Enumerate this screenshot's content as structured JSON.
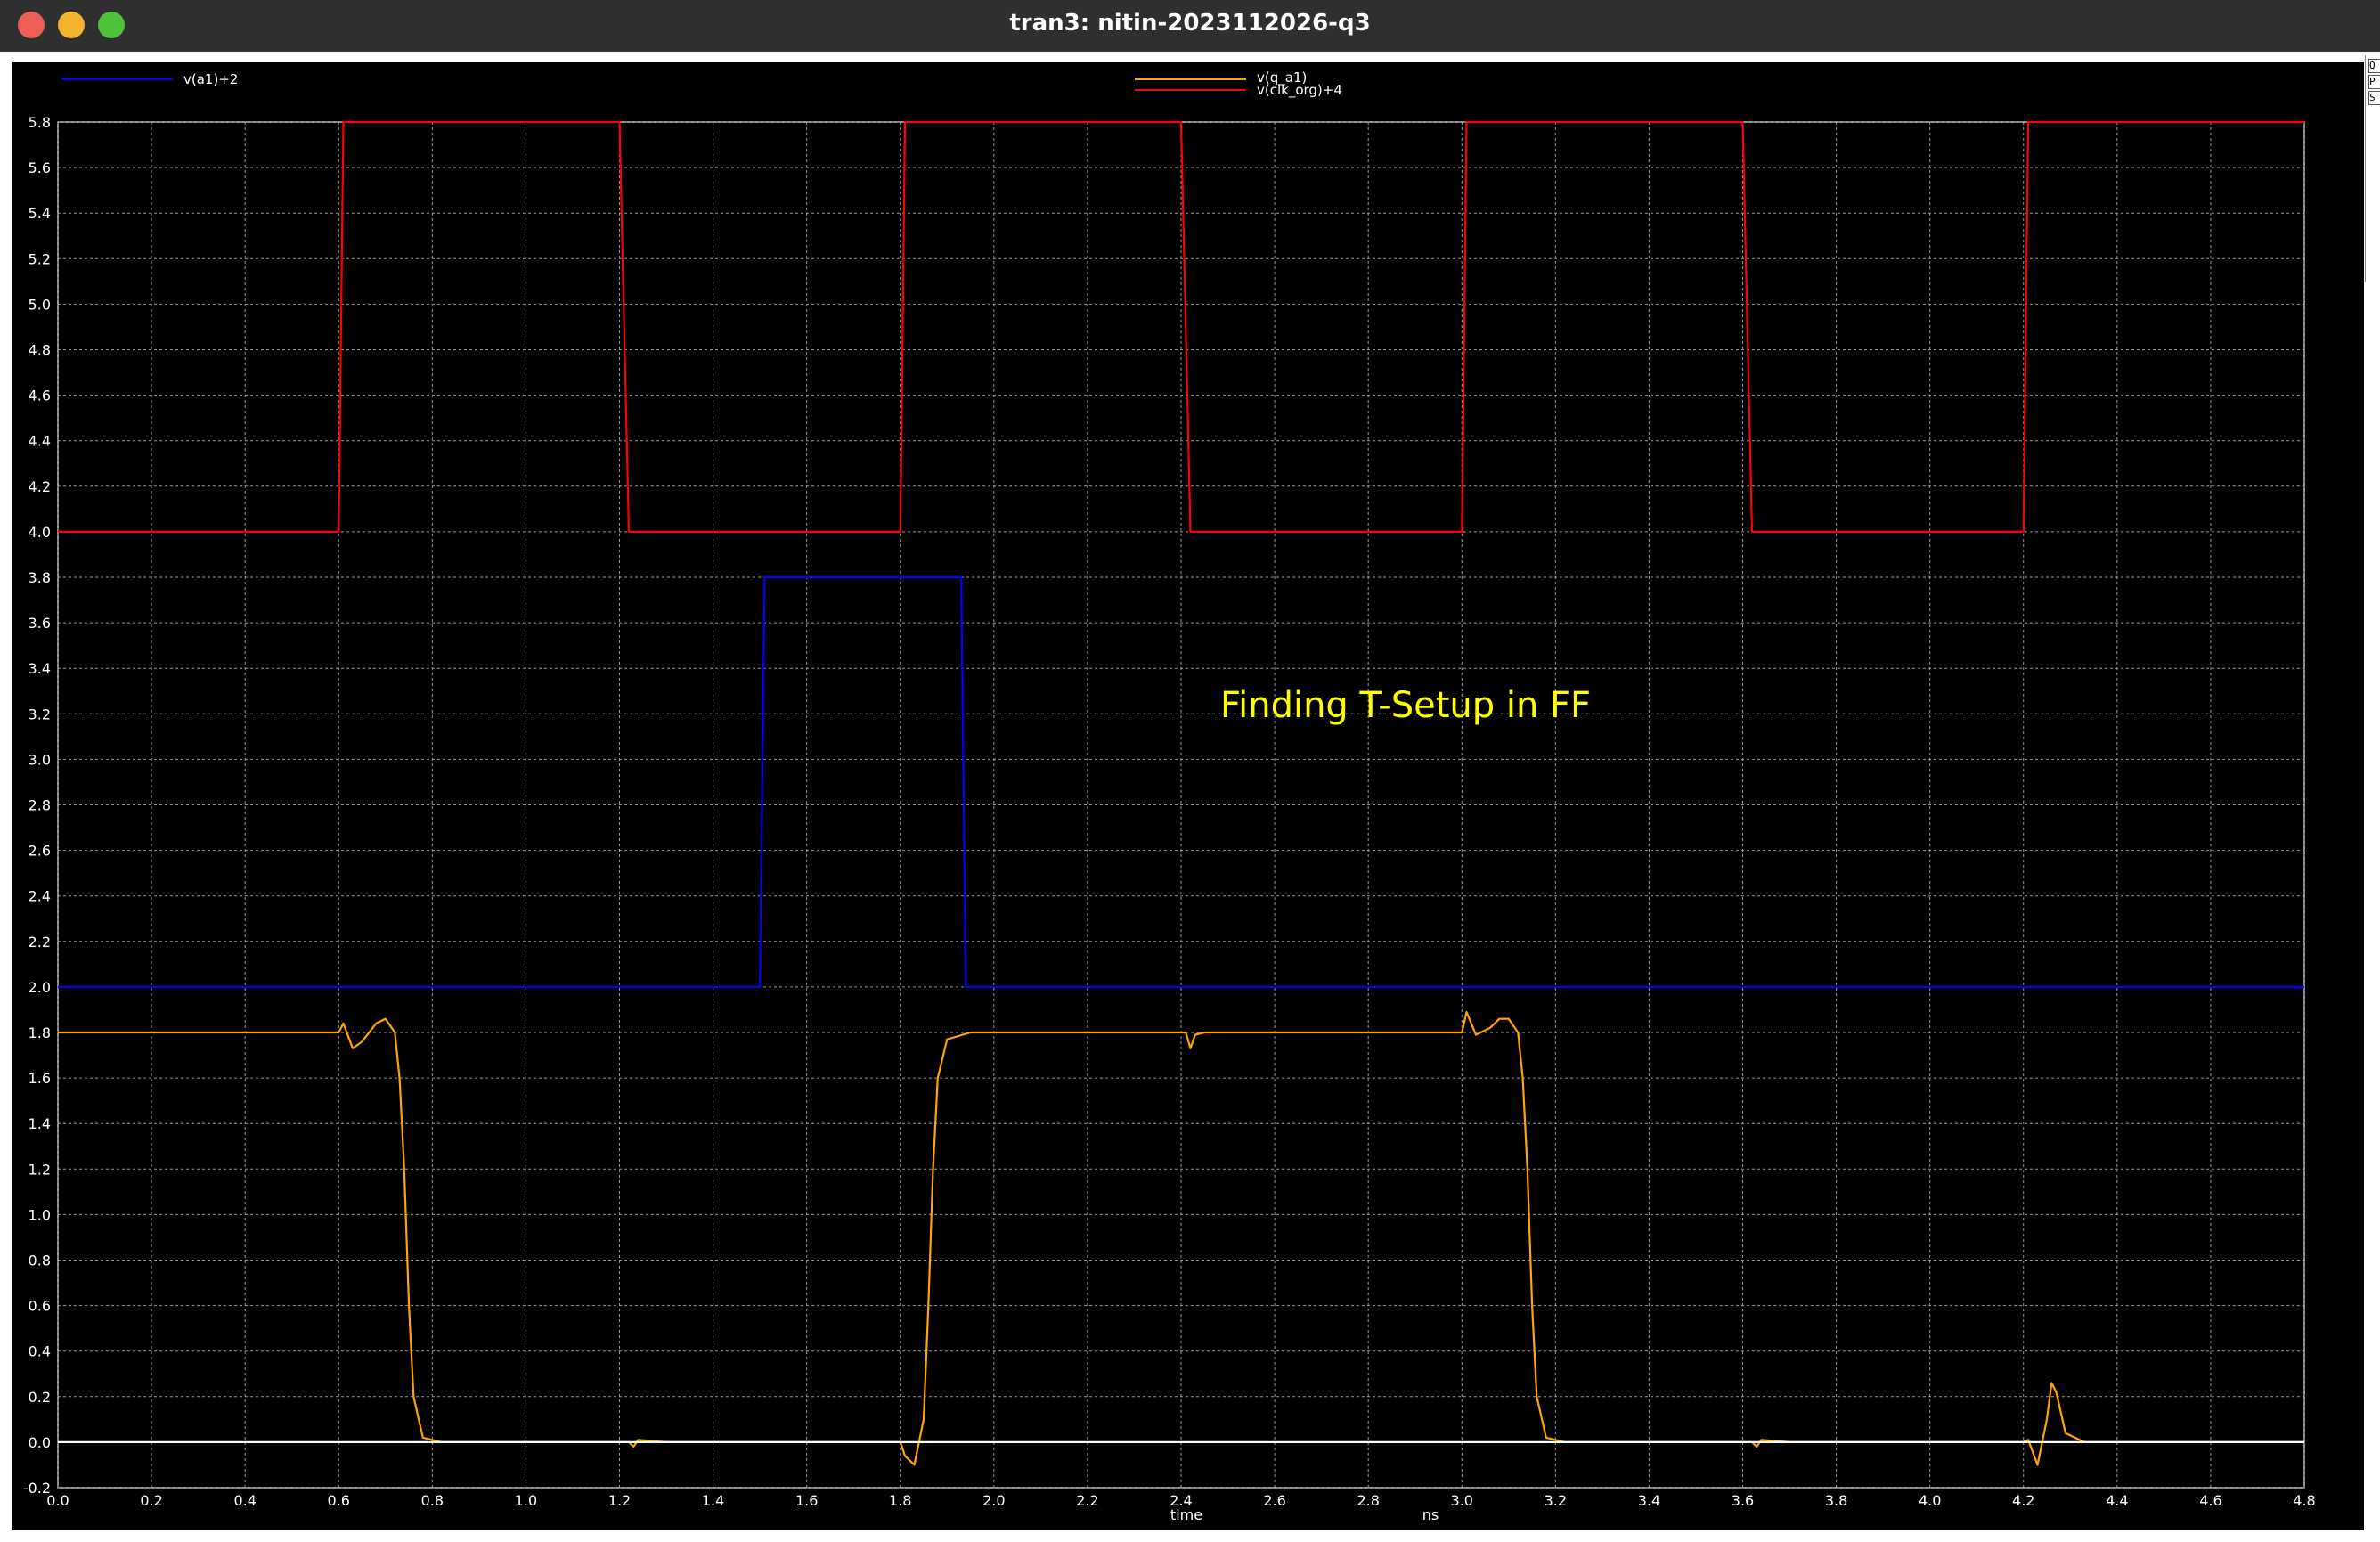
{
  "window": {
    "title": "tran3: nitin-2023112026-q3"
  },
  "side_panel": {
    "keys": [
      "Q",
      "P",
      "S"
    ]
  },
  "annotation": {
    "text": "Finding T-Setup in FF",
    "color": "#ffff00"
  },
  "chart_data": {
    "type": "line",
    "xlabel": "time",
    "xunit": "ns",
    "xlim": [
      0,
      4.8
    ],
    "ylim": [
      -0.2,
      5.8
    ],
    "x_ticks": [
      "0.0",
      "0.2",
      "0.4",
      "0.6",
      "0.8",
      "1.0",
      "1.2",
      "1.4",
      "1.6",
      "1.8",
      "2.0",
      "2.2",
      "2.4",
      "2.6",
      "2.8",
      "3.0",
      "3.2",
      "3.4",
      "3.6",
      "3.8",
      "4.0",
      "4.2",
      "4.4",
      "4.6",
      "4.8"
    ],
    "y_ticks": [
      "-0.2",
      "0.0",
      "0.2",
      "0.4",
      "0.6",
      "0.8",
      "1.0",
      "1.2",
      "1.4",
      "1.6",
      "1.8",
      "2.0",
      "2.2",
      "2.4",
      "2.6",
      "2.8",
      "3.0",
      "3.2",
      "3.4",
      "3.6",
      "3.8",
      "4.0",
      "4.2",
      "4.4",
      "4.6",
      "4.8",
      "5.0",
      "5.2",
      "5.4",
      "5.6",
      "5.8"
    ],
    "grid": true,
    "background": "#000000",
    "series": [
      {
        "name": "v(a1)+2",
        "color": "#0000ff",
        "points": [
          [
            0,
            2.0
          ],
          [
            1.5,
            2.0
          ],
          [
            1.51,
            3.8
          ],
          [
            1.93,
            3.8
          ],
          [
            1.94,
            2.0
          ],
          [
            4.8,
            2.0
          ]
        ]
      },
      {
        "name": "v(q_a1)",
        "color": "#ffa500",
        "points": [
          [
            0,
            1.8
          ],
          [
            0.6,
            1.8
          ],
          [
            0.61,
            1.84
          ],
          [
            0.63,
            1.73
          ],
          [
            0.65,
            1.76
          ],
          [
            0.68,
            1.84
          ],
          [
            0.7,
            1.86
          ],
          [
            0.72,
            1.8
          ],
          [
            0.73,
            1.6
          ],
          [
            0.74,
            1.2
          ],
          [
            0.75,
            0.6
          ],
          [
            0.76,
            0.2
          ],
          [
            0.78,
            0.02
          ],
          [
            0.82,
            0.0
          ],
          [
            1.22,
            0.0
          ],
          [
            1.23,
            -0.02
          ],
          [
            1.24,
            0.01
          ],
          [
            1.3,
            0.0
          ],
          [
            1.8,
            0.0
          ],
          [
            1.81,
            -0.06
          ],
          [
            1.83,
            -0.1
          ],
          [
            1.85,
            0.1
          ],
          [
            1.86,
            0.6
          ],
          [
            1.87,
            1.2
          ],
          [
            1.88,
            1.6
          ],
          [
            1.9,
            1.77
          ],
          [
            1.95,
            1.8
          ],
          [
            2.41,
            1.8
          ],
          [
            2.42,
            1.73
          ],
          [
            2.43,
            1.79
          ],
          [
            2.45,
            1.8
          ],
          [
            3.0,
            1.8
          ],
          [
            3.01,
            1.89
          ],
          [
            3.03,
            1.79
          ],
          [
            3.06,
            1.82
          ],
          [
            3.08,
            1.86
          ],
          [
            3.1,
            1.86
          ],
          [
            3.12,
            1.8
          ],
          [
            3.13,
            1.6
          ],
          [
            3.14,
            1.2
          ],
          [
            3.15,
            0.6
          ],
          [
            3.16,
            0.2
          ],
          [
            3.18,
            0.02
          ],
          [
            3.22,
            0.0
          ],
          [
            3.62,
            0.0
          ],
          [
            3.63,
            -0.02
          ],
          [
            3.64,
            0.01
          ],
          [
            3.7,
            0.0
          ],
          [
            4.2,
            0.0
          ],
          [
            4.21,
            0.01
          ],
          [
            4.23,
            -0.1
          ],
          [
            4.25,
            0.1
          ],
          [
            4.26,
            0.26
          ],
          [
            4.27,
            0.22
          ],
          [
            4.29,
            0.04
          ],
          [
            4.33,
            0.0
          ],
          [
            4.8,
            0.0
          ]
        ]
      },
      {
        "name": "v(clk_org)+4",
        "color": "#ff0000",
        "points": [
          [
            0,
            4.0
          ],
          [
            0.6,
            4.0
          ],
          [
            0.61,
            5.8
          ],
          [
            1.2,
            5.8
          ],
          [
            1.22,
            4.0
          ],
          [
            1.8,
            4.0
          ],
          [
            1.81,
            5.8
          ],
          [
            2.4,
            5.8
          ],
          [
            2.42,
            4.0
          ],
          [
            3.0,
            4.0
          ],
          [
            3.01,
            5.8
          ],
          [
            3.6,
            5.8
          ],
          [
            3.62,
            4.0
          ],
          [
            4.2,
            4.0
          ],
          [
            4.21,
            5.8
          ],
          [
            4.8,
            5.8
          ]
        ]
      },
      {
        "name": "",
        "color": "#ffffff",
        "points": [
          [
            0,
            0.0
          ],
          [
            4.8,
            0.0
          ]
        ]
      }
    ],
    "legend": [
      {
        "name": "v(a1)+2",
        "color": "#0000ff",
        "position": "top-left"
      },
      {
        "name": "v(q_a1)",
        "color": "#ffa500",
        "position": "top-center"
      },
      {
        "name": "v(clk_org)+4",
        "color": "#ff0000",
        "position": "top-center"
      }
    ]
  }
}
